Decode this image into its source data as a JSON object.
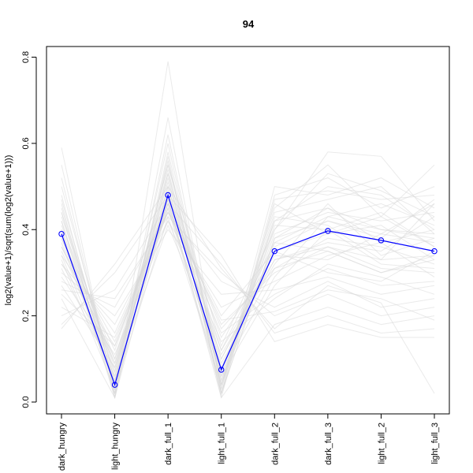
{
  "chart_data": {
    "type": "line",
    "title": "94",
    "xlabel": "",
    "ylabel": "log2(value+1)/sqrt(sum(log2(value+1)))",
    "categories": [
      "dark_hungry",
      "light_hungry",
      "dark_full_1",
      "light_full_1",
      "dark_full_2",
      "dark_full_3",
      "light_full_2",
      "light_full_3"
    ],
    "ylim": [
      0.0,
      0.8
    ],
    "yticks": [
      0.0,
      0.2,
      0.4,
      0.6,
      0.8
    ],
    "ytick_labels": [
      "0.0",
      "0.2",
      "0.4",
      "0.6",
      "0.8"
    ],
    "grid": false,
    "highlight_color": "#0000ff",
    "background_color": "#d9d9d9",
    "series": [
      {
        "highlight": true,
        "values": [
          0.39,
          0.04,
          0.48,
          0.075,
          0.35,
          0.397,
          0.375,
          0.35
        ]
      }
    ],
    "background_series": [
      [
        0.59,
        0.01,
        0.79,
        0.02,
        0.48,
        0.52,
        0.45,
        0.5
      ],
      [
        0.55,
        0.02,
        0.66,
        0.03,
        0.5,
        0.48,
        0.52,
        0.45
      ],
      [
        0.52,
        0.03,
        0.62,
        0.04,
        0.45,
        0.55,
        0.43,
        0.55
      ],
      [
        0.5,
        0.05,
        0.6,
        0.05,
        0.42,
        0.5,
        0.48,
        0.4
      ],
      [
        0.48,
        0.02,
        0.58,
        0.06,
        0.4,
        0.58,
        0.57,
        0.42
      ],
      [
        0.47,
        0.04,
        0.56,
        0.02,
        0.38,
        0.45,
        0.4,
        0.38
      ],
      [
        0.45,
        0.06,
        0.55,
        0.08,
        0.36,
        0.42,
        0.38,
        0.47
      ],
      [
        0.44,
        0.03,
        0.54,
        0.04,
        0.41,
        0.4,
        0.44,
        0.36
      ],
      [
        0.43,
        0.08,
        0.53,
        0.1,
        0.33,
        0.37,
        0.35,
        0.43
      ],
      [
        0.42,
        0.05,
        0.52,
        0.03,
        0.44,
        0.47,
        0.5,
        0.39
      ],
      [
        0.41,
        0.1,
        0.51,
        0.12,
        0.37,
        0.35,
        0.3,
        0.34
      ],
      [
        0.4,
        0.02,
        0.5,
        0.05,
        0.39,
        0.44,
        0.42,
        0.44
      ],
      [
        0.39,
        0.07,
        0.49,
        0.09,
        0.31,
        0.38,
        0.36,
        0.32
      ],
      [
        0.38,
        0.12,
        0.48,
        0.15,
        0.34,
        0.33,
        0.39,
        0.37
      ],
      [
        0.37,
        0.04,
        0.47,
        0.02,
        0.43,
        0.41,
        0.33,
        0.46
      ],
      [
        0.36,
        0.14,
        0.46,
        0.18,
        0.3,
        0.36,
        0.31,
        0.3
      ],
      [
        0.35,
        0.09,
        0.45,
        0.07,
        0.29,
        0.43,
        0.46,
        0.41
      ],
      [
        0.34,
        0.16,
        0.44,
        0.2,
        0.35,
        0.3,
        0.28,
        0.35
      ],
      [
        0.33,
        0.03,
        0.43,
        0.04,
        0.46,
        0.39,
        0.41,
        0.33
      ],
      [
        0.32,
        0.18,
        0.42,
        0.22,
        0.28,
        0.34,
        0.37,
        0.29
      ],
      [
        0.31,
        0.06,
        0.41,
        0.11,
        0.32,
        0.46,
        0.34,
        0.38
      ],
      [
        0.3,
        0.2,
        0.4,
        0.25,
        0.26,
        0.29,
        0.25,
        0.27
      ],
      [
        0.29,
        0.11,
        0.42,
        0.14,
        0.24,
        0.32,
        0.29,
        0.25
      ],
      [
        0.28,
        0.22,
        0.44,
        0.28,
        0.22,
        0.28,
        0.22,
        0.24
      ],
      [
        0.27,
        0.08,
        0.46,
        0.06,
        0.27,
        0.4,
        0.32,
        0.31
      ],
      [
        0.26,
        0.24,
        0.43,
        0.3,
        0.2,
        0.25,
        0.2,
        0.22
      ],
      [
        0.25,
        0.13,
        0.45,
        0.16,
        0.25,
        0.31,
        0.27,
        0.28
      ],
      [
        0.24,
        0.01,
        0.47,
        0.01,
        0.18,
        0.22,
        0.18,
        0.2
      ],
      [
        0.22,
        0.15,
        0.44,
        0.19,
        0.21,
        0.26,
        0.24,
        0.19
      ],
      [
        0.2,
        0.26,
        0.46,
        0.32,
        0.16,
        0.2,
        0.16,
        0.17
      ],
      [
        0.18,
        0.3,
        0.48,
        0.34,
        0.14,
        0.18,
        0.15,
        0.15
      ],
      [
        0.17,
        0.32,
        0.5,
        0.31,
        0.17,
        0.27,
        0.23,
        0.02
      ],
      [
        0.46,
        0.01,
        0.57,
        0.01,
        0.47,
        0.49,
        0.47,
        0.48
      ],
      [
        0.44,
        0.07,
        0.55,
        0.13,
        0.4,
        0.53,
        0.49,
        0.43
      ],
      [
        0.42,
        0.01,
        0.53,
        0.02,
        0.38,
        0.42,
        0.39,
        0.46
      ],
      [
        0.4,
        0.09,
        0.5,
        0.1,
        0.35,
        0.39,
        0.43,
        0.36
      ],
      [
        0.38,
        0.04,
        0.48,
        0.07,
        0.42,
        0.45,
        0.37,
        0.4
      ],
      [
        0.36,
        0.1,
        0.46,
        0.12,
        0.33,
        0.36,
        0.33,
        0.34
      ],
      [
        0.34,
        0.05,
        0.45,
        0.04,
        0.37,
        0.43,
        0.4,
        0.39
      ],
      [
        0.32,
        0.13,
        0.47,
        0.17,
        0.31,
        0.35,
        0.3,
        0.33
      ]
    ]
  }
}
